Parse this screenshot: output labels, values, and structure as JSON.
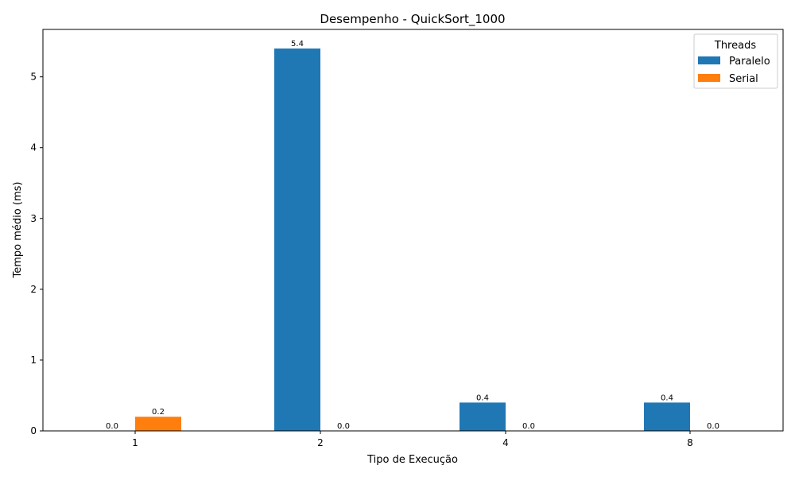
{
  "chart_data": {
    "type": "bar",
    "title": "Desempenho - QuickSort_1000",
    "xlabel": "Tipo de Execução",
    "ylabel": "Tempo médio (ms)",
    "categories": [
      "1",
      "2",
      "4",
      "8"
    ],
    "series": [
      {
        "name": "Paralelo",
        "values": [
          0.0,
          5.4,
          0.4,
          0.4
        ],
        "labels": [
          "0.0",
          "5.4",
          "0.4",
          "0.4"
        ],
        "color": "#1f77b4"
      },
      {
        "name": "Serial",
        "values": [
          0.2,
          0.0,
          0.0,
          0.0
        ],
        "labels": [
          "0.2",
          "0.0",
          "0.0",
          "0.0"
        ],
        "color": "#ff7f0e"
      }
    ],
    "yticks": [
      0,
      1,
      2,
      3,
      4,
      5
    ],
    "ylim": [
      0,
      5.67
    ],
    "grid": false,
    "legend": {
      "title": "Threads",
      "position": "top-right"
    }
  }
}
